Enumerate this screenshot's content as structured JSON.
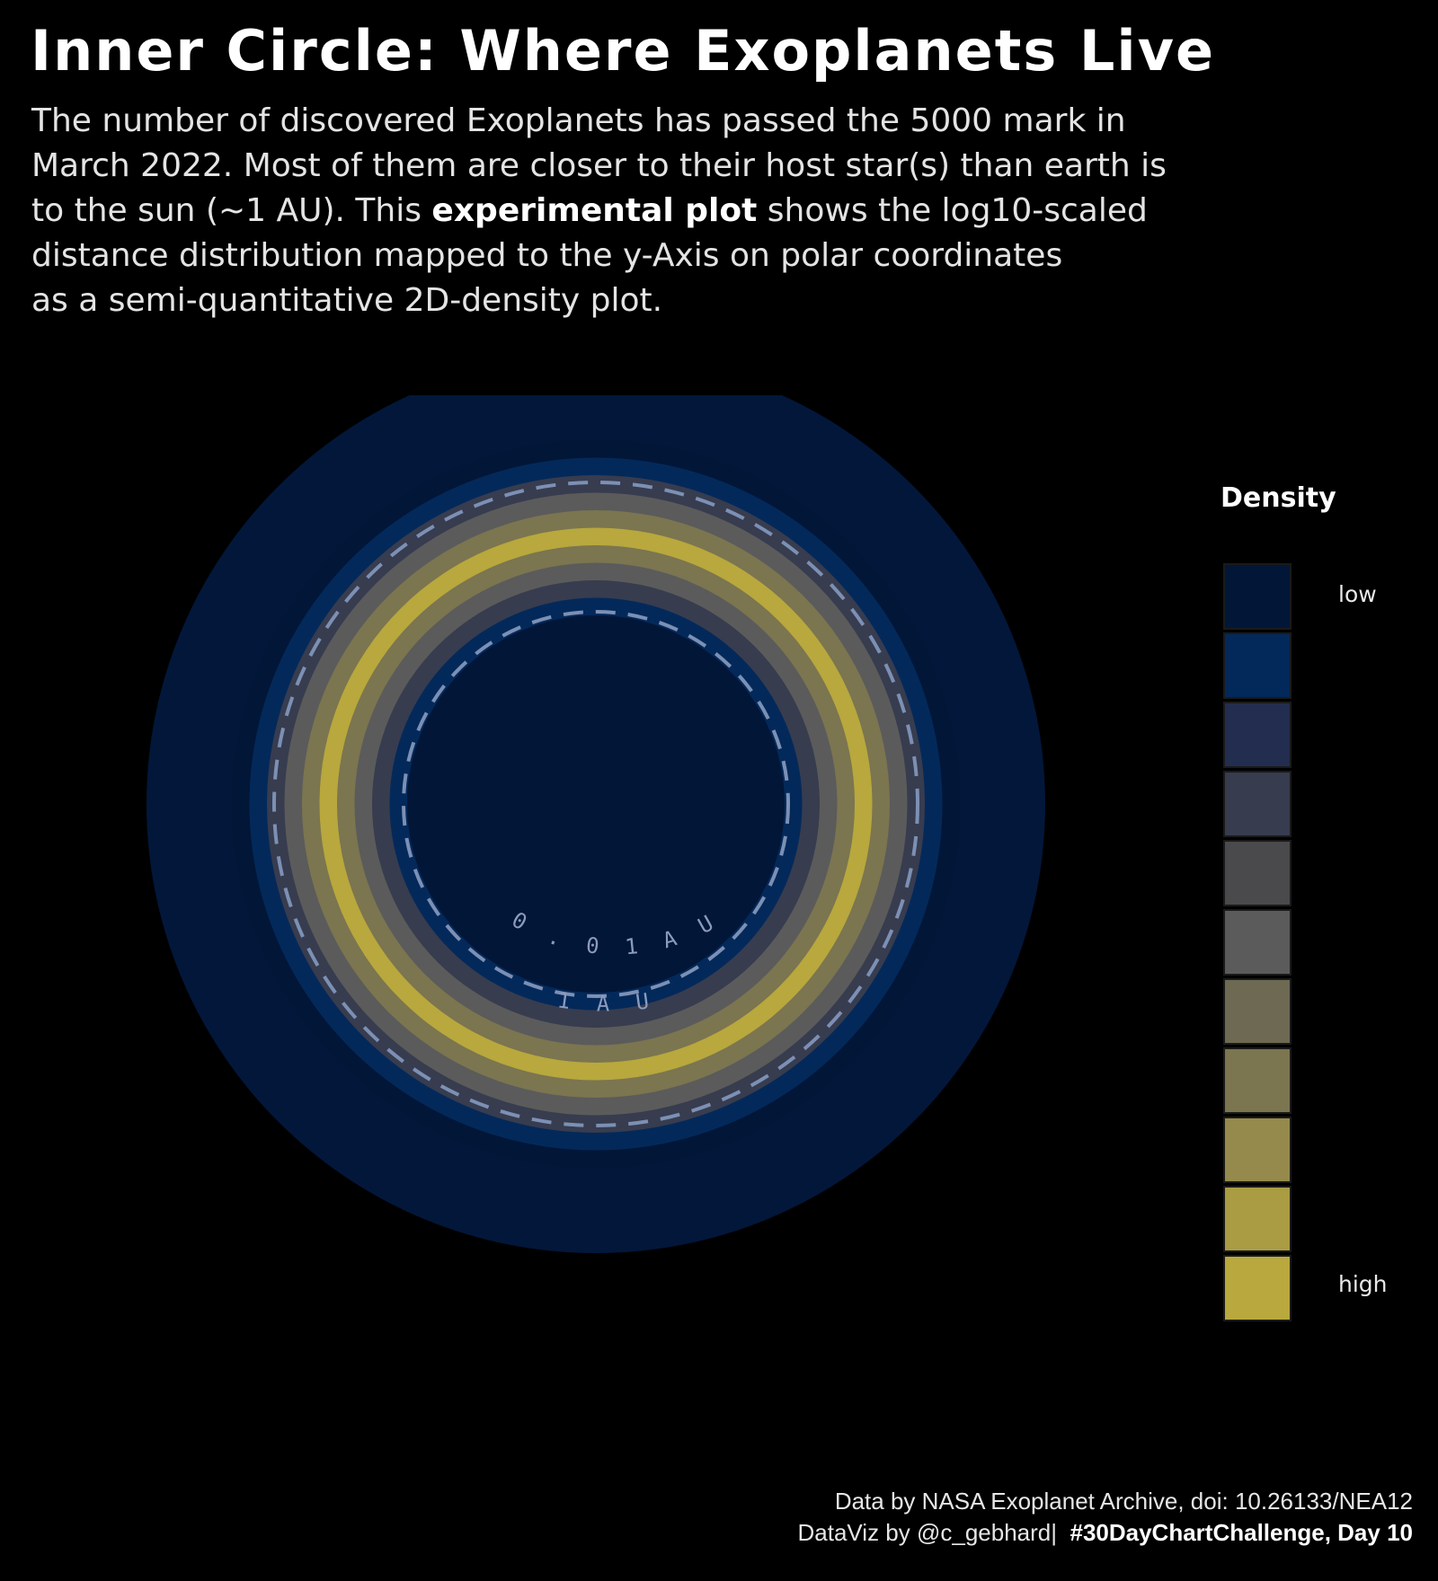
{
  "header": {
    "title": "Inner Circle: Where Exoplanets Live",
    "subtitle": {
      "line1": "The number of discovered Exoplanets has passed the 5000 mark in",
      "line2": "March 2022. Most of them are closer to their host star(s) than earth is",
      "line3_before": "to the sun (~1 AU). This ",
      "line3_strong": "experimental plot",
      "line3_after": " shows the log10-scaled",
      "line4": "distance distribution mapped to the y-Axis on polar coordinates",
      "line5": "as a semi-quantitative 2D-density plot."
    }
  },
  "chart_data": {
    "type": "heatmap",
    "coordinate_system": "polar",
    "radial_scale": "log10",
    "radial_unit": "AU",
    "reference_circles": [
      {
        "value": 0.01,
        "label": "0 . 0 1   A U"
      },
      {
        "value": 1,
        "label": "1   A U"
      }
    ],
    "density_bands_inner_to_outer": [
      1,
      2,
      4,
      6,
      8,
      11,
      8,
      6,
      4,
      2,
      1
    ],
    "legend": {
      "title": "Density",
      "low_label": "low",
      "high_label": "high",
      "levels": [
        "#021638",
        "#03295a",
        "#232d50",
        "#373c4f",
        "#4a4a4c",
        "#5b5b5b",
        "#6d6953",
        "#7b7550",
        "#958a4c",
        "#a99c43",
        "#b8a83d"
      ],
      "placement": "right"
    },
    "colors": {
      "background": "#000000",
      "outer_disk": "#02173a",
      "guide_line": "#7c90b4"
    }
  },
  "footer": {
    "source": "Data by NASA Exoplanet Archive, doi: 10.26133/NEA12",
    "credit": "DataViz by @c_gebhard|",
    "tag": "#30DayChartChallenge, Day 10"
  }
}
